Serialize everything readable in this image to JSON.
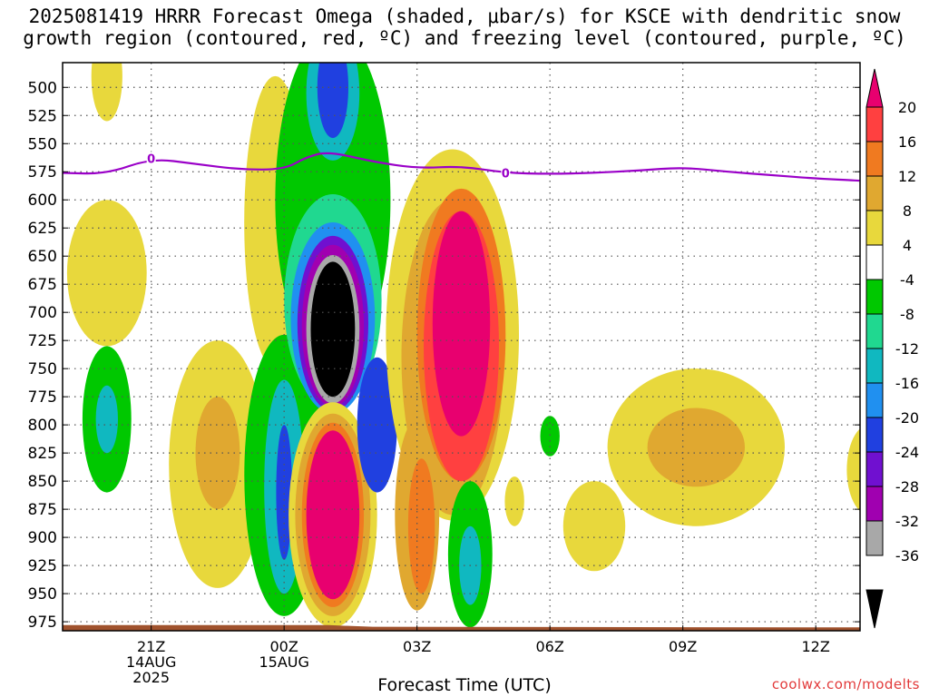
{
  "title_line1": "2025081419 HRRR Forecast Omega (shaded, μbar/s) for KSCE with dendritic snow",
  "title_line2": "growth region (contoured, red, ºC) and freezing level (contoured, purple, ºC)",
  "watermark": "coolwx.com/modelts",
  "chart_data": {
    "type": "heatmap",
    "xlabel": "Forecast Time (UTC)",
    "ylabel": "",
    "y_axis": {
      "unit": "hPa",
      "inverted": true,
      "ticks": [
        500,
        525,
        550,
        575,
        600,
        625,
        650,
        675,
        700,
        725,
        750,
        775,
        800,
        825,
        850,
        875,
        900,
        925,
        950,
        975
      ],
      "range": [
        478,
        983
      ]
    },
    "x_axis": {
      "range_hours": [
        19.0,
        13.0
      ],
      "ticks": [
        {
          "hour": 21,
          "label": "21Z",
          "sub1": "14AUG",
          "sub2": "2025"
        },
        {
          "hour": 24,
          "label": "00Z",
          "sub1": "15AUG",
          "sub2": ""
        },
        {
          "hour": 27,
          "label": "03Z",
          "sub1": "",
          "sub2": ""
        },
        {
          "hour": 30,
          "label": "06Z",
          "sub1": "",
          "sub2": ""
        },
        {
          "hour": 33,
          "label": "09Z",
          "sub1": "",
          "sub2": ""
        },
        {
          "hour": 36,
          "label": "12Z",
          "sub1": "",
          "sub2": ""
        }
      ]
    },
    "grid": true,
    "colorbar": {
      "labels": [
        "20",
        "16",
        "12",
        "8",
        "4",
        "-4",
        "-8",
        "-12",
        "-16",
        "-20",
        "-24",
        "-28",
        "-32",
        "-36"
      ],
      "colors": [
        "#e8006f",
        "#ff4040",
        "#f07a20",
        "#e0a830",
        "#e8d83c",
        "#ffffff",
        "#00c800",
        "#20d890",
        "#10b8c0",
        "#2090f0",
        "#2040e0",
        "#7010d0",
        "#a000b0",
        "#a8a8a8",
        "#000000"
      ],
      "upper_arrow": "#e8006f",
      "lower_arrow": "#000000"
    },
    "freezing_level": {
      "contour_label": "0",
      "color": "#9a00c8",
      "points": [
        [
          19.0,
          576
        ],
        [
          20.0,
          577
        ],
        [
          21.0,
          563
        ],
        [
          22.0,
          568
        ],
        [
          23.0,
          573
        ],
        [
          24.0,
          573
        ],
        [
          24.5,
          562
        ],
        [
          25.0,
          557
        ],
        [
          26.0,
          566
        ],
        [
          27.0,
          572
        ],
        [
          28.0,
          570
        ],
        [
          29.0,
          576
        ],
        [
          30.0,
          577
        ],
        [
          31.0,
          576
        ],
        [
          32.0,
          574
        ],
        [
          33.0,
          571
        ],
        [
          34.0,
          575
        ],
        [
          35.0,
          578
        ],
        [
          36.0,
          581
        ],
        [
          37.0,
          583
        ]
      ],
      "label_hours": [
        21.0,
        29.0
      ]
    },
    "terrain": {
      "color": "#a0522d",
      "top_pressure": 978
    },
    "cells": [
      {
        "t": 20.0,
        "p": 490,
        "dt": 0.35,
        "dp": 40,
        "omega": 5
      },
      {
        "t": 20.0,
        "p": 665,
        "dt": 0.9,
        "dp": 65,
        "omega": 5
      },
      {
        "t": 20.0,
        "p": 795,
        "dt": 0.55,
        "dp": 65,
        "omega": -7
      },
      {
        "t": 20.0,
        "p": 795,
        "dt": 0.25,
        "dp": 30,
        "omega": -13
      },
      {
        "t": 22.5,
        "p": 835,
        "dt": 1.1,
        "dp": 110,
        "omega": 5
      },
      {
        "t": 22.5,
        "p": 825,
        "dt": 0.5,
        "dp": 50,
        "omega": 9
      },
      {
        "t": 23.8,
        "p": 620,
        "dt": 0.7,
        "dp": 130,
        "omega": 5
      },
      {
        "t": 24.0,
        "p": 845,
        "dt": 0.9,
        "dp": 125,
        "omega": -7
      },
      {
        "t": 24.0,
        "p": 855,
        "dt": 0.45,
        "dp": 95,
        "omega": -13
      },
      {
        "t": 24.0,
        "p": 860,
        "dt": 0.18,
        "dp": 60,
        "omega": -22
      },
      {
        "t": 25.1,
        "p": 600,
        "dt": 1.3,
        "dp": 150,
        "omega": -7
      },
      {
        "t": 25.1,
        "p": 690,
        "dt": 1.1,
        "dp": 95,
        "omega": -11
      },
      {
        "t": 25.1,
        "p": 705,
        "dt": 0.95,
        "dp": 85,
        "omega": -17
      },
      {
        "t": 25.1,
        "p": 710,
        "dt": 0.8,
        "dp": 78,
        "omega": -25
      },
      {
        "t": 25.1,
        "p": 712,
        "dt": 0.7,
        "dp": 72,
        "omega": -30
      },
      {
        "t": 25.1,
        "p": 715,
        "dt": 0.6,
        "dp": 66,
        "omega": -34
      },
      {
        "t": 25.1,
        "p": 715,
        "dt": 0.5,
        "dp": 60,
        "omega": -40
      },
      {
        "t": 25.1,
        "p": 505,
        "dt": 0.6,
        "dp": 60,
        "omega": -13
      },
      {
        "t": 25.1,
        "p": 500,
        "dt": 0.35,
        "dp": 45,
        "omega": -22
      },
      {
        "t": 25.1,
        "p": 880,
        "dt": 1.0,
        "dp": 100,
        "omega": 5
      },
      {
        "t": 25.1,
        "p": 880,
        "dt": 0.85,
        "dp": 90,
        "omega": 9
      },
      {
        "t": 25.1,
        "p": 880,
        "dt": 0.7,
        "dp": 82,
        "omega": 14
      },
      {
        "t": 25.1,
        "p": 880,
        "dt": 0.6,
        "dp": 75,
        "omega": 22
      },
      {
        "t": 26.1,
        "p": 800,
        "dt": 0.45,
        "dp": 60,
        "omega": -22
      },
      {
        "t": 27.2,
        "p": 710,
        "dt": 0.9,
        "dp": 50,
        "omega": 5
      },
      {
        "t": 27.8,
        "p": 720,
        "dt": 1.5,
        "dp": 165,
        "omega": 5
      },
      {
        "t": 27.8,
        "p": 740,
        "dt": 1.15,
        "dp": 140,
        "omega": 9
      },
      {
        "t": 28.0,
        "p": 720,
        "dt": 1.0,
        "dp": 130,
        "omega": 13
      },
      {
        "t": 28.0,
        "p": 730,
        "dt": 0.85,
        "dp": 120,
        "omega": 18
      },
      {
        "t": 28.0,
        "p": 710,
        "dt": 0.65,
        "dp": 100,
        "omega": 22
      },
      {
        "t": 27.0,
        "p": 880,
        "dt": 0.5,
        "dp": 85,
        "omega": 9
      },
      {
        "t": 27.1,
        "p": 890,
        "dt": 0.3,
        "dp": 60,
        "omega": 14
      },
      {
        "t": 28.2,
        "p": 915,
        "dt": 0.5,
        "dp": 65,
        "omega": -7
      },
      {
        "t": 28.2,
        "p": 925,
        "dt": 0.25,
        "dp": 35,
        "omega": -13
      },
      {
        "t": 29.2,
        "p": 868,
        "dt": 0.22,
        "dp": 22,
        "omega": 5
      },
      {
        "t": 30.0,
        "p": 810,
        "dt": 0.22,
        "dp": 18,
        "omega": -7
      },
      {
        "t": 31.0,
        "p": 890,
        "dt": 0.7,
        "dp": 40,
        "omega": 5
      },
      {
        "t": 33.3,
        "p": 820,
        "dt": 2.0,
        "dp": 70,
        "omega": 5
      },
      {
        "t": 33.3,
        "p": 820,
        "dt": 1.1,
        "dp": 35,
        "omega": 9
      },
      {
        "t": 37.2,
        "p": 840,
        "dt": 0.5,
        "dp": 40,
        "omega": 5
      }
    ]
  }
}
